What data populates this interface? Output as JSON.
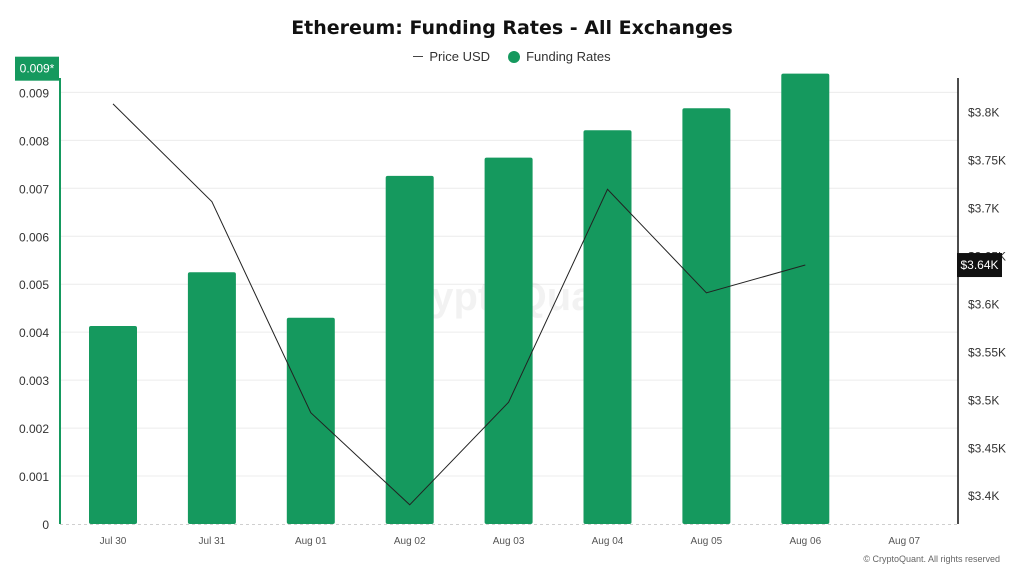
{
  "chart_data": {
    "type": "bar",
    "title": "Ethereum: Funding Rates - All Exchanges",
    "categories": [
      "Jul 30",
      "Jul 31",
      "Aug 01",
      "Aug 02",
      "Aug 03",
      "Aug 04",
      "Aug 05",
      "Aug 06",
      "Aug 07"
    ],
    "series": [
      {
        "name": "Funding Rates",
        "type": "bar",
        "axis": "left",
        "color": "#15995e",
        "values": [
          0.00413,
          0.00525,
          0.0043,
          0.00726,
          0.00764,
          0.00821,
          0.00867,
          0.00939,
          null
        ]
      },
      {
        "name": "Price USD",
        "type": "line",
        "axis": "right",
        "color": "#222222",
        "values": [
          3808,
          3706,
          3486,
          3390,
          3497,
          3719,
          3611,
          3640,
          null
        ]
      }
    ],
    "y_left": {
      "ylim": [
        0,
        0.0093
      ],
      "ticks": [
        0,
        0.001,
        0.002,
        0.003,
        0.004,
        0.005,
        0.006,
        0.007,
        0.008,
        0.009
      ],
      "tick_labels": [
        "0",
        "0.001",
        "0.002",
        "0.003",
        "0.004",
        "0.005",
        "0.006",
        "0.007",
        "0.008",
        "0.009"
      ]
    },
    "y_right": {
      "ylim": [
        3370,
        3835
      ],
      "ticks": [
        3400,
        3450,
        3500,
        3550,
        3600,
        3650,
        3700,
        3750,
        3800
      ],
      "tick_labels": [
        "$3.4K",
        "$3.45K",
        "$3.5K",
        "$3.55K",
        "$3.6K",
        "$3.65K",
        "$3.7K",
        "$3.75K",
        "$3.8K"
      ]
    },
    "left_marker": {
      "value": 0.00939,
      "label": "0.009*",
      "color": "#15995e"
    },
    "right_marker": {
      "value": 3640,
      "label": "$3.64K",
      "color": "#111111"
    },
    "grid": true,
    "legend": {
      "position": "top-center",
      "items": [
        {
          "label": "Price USD",
          "symbol": "line"
        },
        {
          "label": "Funding Rates",
          "symbol": "dot"
        }
      ]
    },
    "watermark": "CryptoQuant"
  },
  "footer": {
    "copyright": "© CryptoQuant. All rights reserved"
  },
  "colors": {
    "accent": "#15995e",
    "line": "#222222",
    "grid": "#ececec"
  }
}
